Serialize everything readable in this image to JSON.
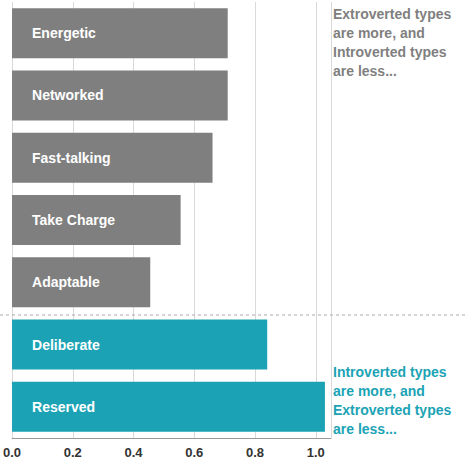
{
  "chart_data": {
    "type": "bar",
    "orientation": "horizontal",
    "categories": [
      "Energetic",
      "Networked",
      "Fast-talking",
      "Take Charge",
      "Adaptable",
      "Deliberate",
      "Reserved"
    ],
    "values": [
      0.71,
      0.71,
      0.66,
      0.555,
      0.455,
      0.84,
      1.03
    ],
    "colors": [
      "#7f7f7f",
      "#7f7f7f",
      "#7f7f7f",
      "#7f7f7f",
      "#7f7f7f",
      "#1ba3b5",
      "#1ba3b5"
    ],
    "xlim": [
      0,
      1.05
    ],
    "xticks": [
      {
        "value": 0,
        "label": "0.0"
      },
      0.2,
      0.4,
      0.6,
      0.8,
      {
        "value": 1,
        "label": "1.0"
      }
    ],
    "grid": true,
    "annotations": [
      "Extroverted types are more, and Introverted types are less...",
      "Introverted types are more, and Extroverted types are less..."
    ]
  }
}
